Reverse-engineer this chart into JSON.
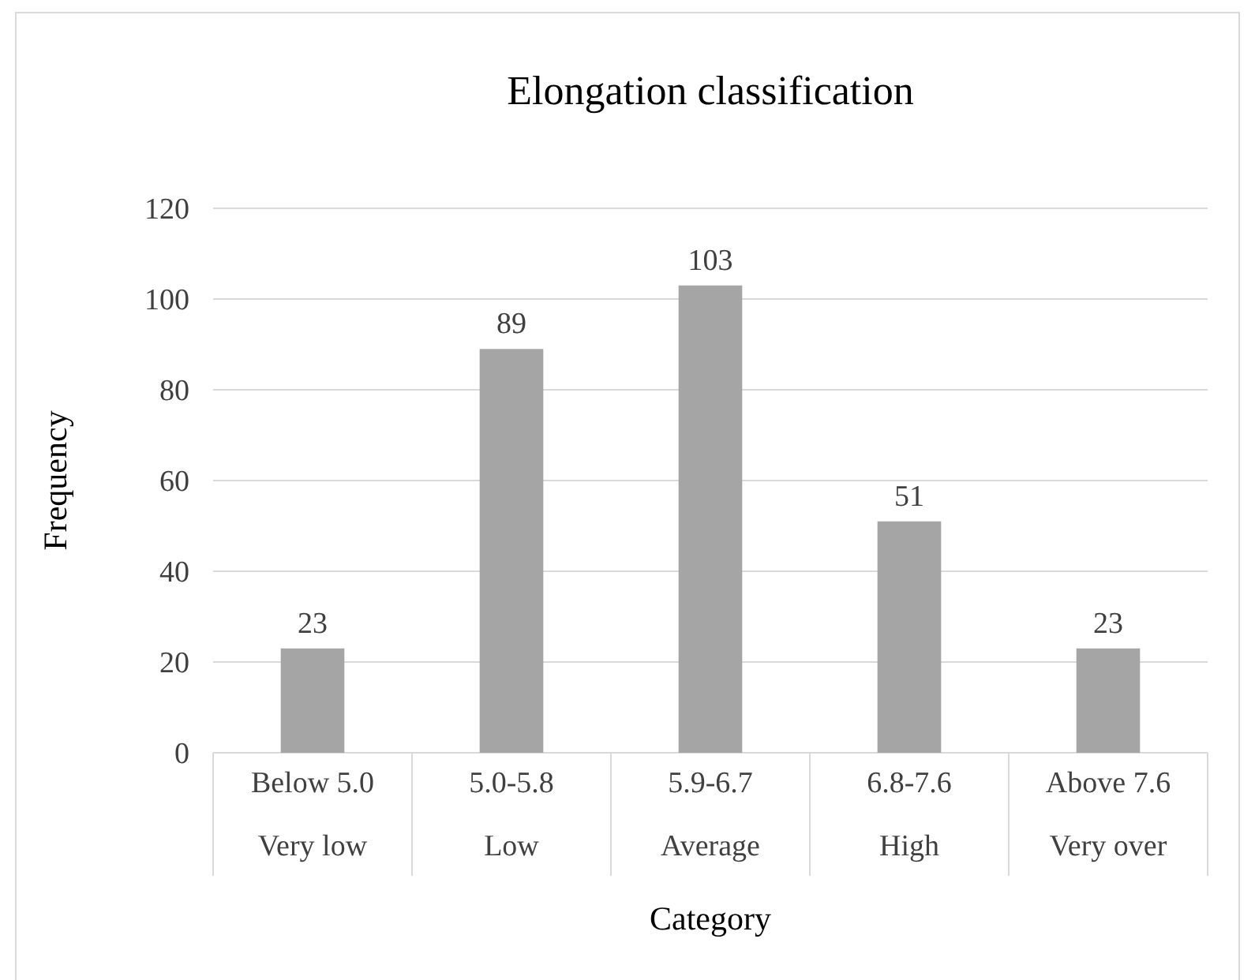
{
  "chart_data": {
    "type": "bar",
    "title": "Elongation classification",
    "xlabel": "Category",
    "ylabel": "Frequency",
    "categories": [
      "Below 5.0\nVery low",
      "5.0-5.8\nLow",
      "5.9-6.7\nAverage",
      "6.8-7.6\nHigh",
      "Above 7.6\nVery over"
    ],
    "values": [
      23,
      89,
      103,
      51,
      23
    ],
    "color": "#a5a5a5",
    "ylim": [
      0,
      120
    ],
    "yticks": [
      0,
      20,
      40,
      60,
      80,
      100,
      120
    ],
    "grid": "y",
    "data_labels": true
  }
}
